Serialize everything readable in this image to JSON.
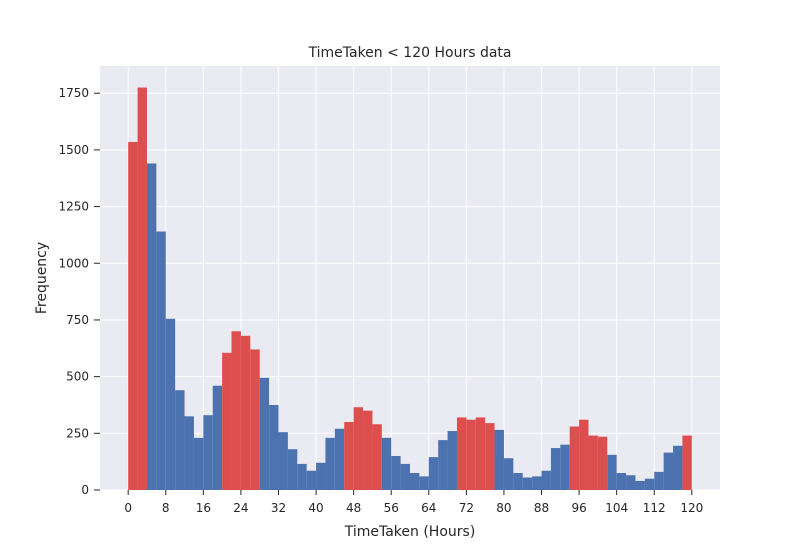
{
  "chart_data": {
    "type": "bar",
    "title": "TimeTaken < 120 Hours data",
    "xlabel": "TimeTaken (Hours)",
    "ylabel": "Frequency",
    "xlim": [
      -6,
      126
    ],
    "ylim": [
      0,
      1870
    ],
    "xticks": [
      0,
      8,
      16,
      24,
      32,
      40,
      48,
      56,
      64,
      72,
      80,
      88,
      96,
      104,
      112,
      120
    ],
    "yticks": [
      0,
      250,
      500,
      750,
      1000,
      1250,
      1500,
      1750
    ],
    "bin_width": 2,
    "grid": true,
    "colors": {
      "background": "#EAEAF2",
      "grid": "#FFFFFF",
      "base": "#4C72B0",
      "highlight": "#DD4F4F"
    },
    "bins": [
      {
        "x": 0,
        "value": 1535,
        "highlight": true
      },
      {
        "x": 2,
        "value": 1775,
        "highlight": true
      },
      {
        "x": 4,
        "value": 1440,
        "highlight": false
      },
      {
        "x": 6,
        "value": 1140,
        "highlight": false
      },
      {
        "x": 8,
        "value": 755,
        "highlight": false
      },
      {
        "x": 10,
        "value": 440,
        "highlight": false
      },
      {
        "x": 12,
        "value": 325,
        "highlight": false
      },
      {
        "x": 14,
        "value": 230,
        "highlight": false
      },
      {
        "x": 16,
        "value": 330,
        "highlight": false
      },
      {
        "x": 18,
        "value": 460,
        "highlight": false
      },
      {
        "x": 20,
        "value": 605,
        "highlight": true
      },
      {
        "x": 22,
        "value": 700,
        "highlight": true
      },
      {
        "x": 24,
        "value": 680,
        "highlight": true
      },
      {
        "x": 26,
        "value": 620,
        "highlight": true
      },
      {
        "x": 28,
        "value": 495,
        "highlight": false
      },
      {
        "x": 30,
        "value": 375,
        "highlight": false
      },
      {
        "x": 32,
        "value": 255,
        "highlight": false
      },
      {
        "x": 34,
        "value": 180,
        "highlight": false
      },
      {
        "x": 36,
        "value": 115,
        "highlight": false
      },
      {
        "x": 38,
        "value": 85,
        "highlight": false
      },
      {
        "x": 40,
        "value": 120,
        "highlight": false
      },
      {
        "x": 42,
        "value": 230,
        "highlight": false
      },
      {
        "x": 44,
        "value": 270,
        "highlight": false
      },
      {
        "x": 46,
        "value": 300,
        "highlight": true
      },
      {
        "x": 48,
        "value": 365,
        "highlight": true
      },
      {
        "x": 50,
        "value": 350,
        "highlight": true
      },
      {
        "x": 52,
        "value": 290,
        "highlight": true
      },
      {
        "x": 54,
        "value": 230,
        "highlight": false
      },
      {
        "x": 56,
        "value": 150,
        "highlight": false
      },
      {
        "x": 58,
        "value": 115,
        "highlight": false
      },
      {
        "x": 60,
        "value": 75,
        "highlight": false
      },
      {
        "x": 62,
        "value": 60,
        "highlight": false
      },
      {
        "x": 64,
        "value": 145,
        "highlight": false
      },
      {
        "x": 66,
        "value": 220,
        "highlight": false
      },
      {
        "x": 68,
        "value": 260,
        "highlight": false
      },
      {
        "x": 70,
        "value": 320,
        "highlight": true
      },
      {
        "x": 72,
        "value": 310,
        "highlight": true
      },
      {
        "x": 74,
        "value": 320,
        "highlight": true
      },
      {
        "x": 76,
        "value": 295,
        "highlight": true
      },
      {
        "x": 78,
        "value": 265,
        "highlight": false
      },
      {
        "x": 80,
        "value": 140,
        "highlight": false
      },
      {
        "x": 82,
        "value": 75,
        "highlight": false
      },
      {
        "x": 84,
        "value": 55,
        "highlight": false
      },
      {
        "x": 86,
        "value": 60,
        "highlight": false
      },
      {
        "x": 88,
        "value": 85,
        "highlight": false
      },
      {
        "x": 90,
        "value": 185,
        "highlight": false
      },
      {
        "x": 92,
        "value": 200,
        "highlight": false
      },
      {
        "x": 94,
        "value": 280,
        "highlight": true
      },
      {
        "x": 96,
        "value": 310,
        "highlight": true
      },
      {
        "x": 98,
        "value": 240,
        "highlight": true
      },
      {
        "x": 100,
        "value": 235,
        "highlight": true
      },
      {
        "x": 102,
        "value": 155,
        "highlight": false
      },
      {
        "x": 104,
        "value": 75,
        "highlight": false
      },
      {
        "x": 106,
        "value": 65,
        "highlight": false
      },
      {
        "x": 108,
        "value": 40,
        "highlight": false
      },
      {
        "x": 110,
        "value": 50,
        "highlight": false
      },
      {
        "x": 112,
        "value": 80,
        "highlight": false
      },
      {
        "x": 114,
        "value": 165,
        "highlight": false
      },
      {
        "x": 116,
        "value": 195,
        "highlight": false
      },
      {
        "x": 118,
        "value": 240,
        "highlight": true
      }
    ]
  }
}
